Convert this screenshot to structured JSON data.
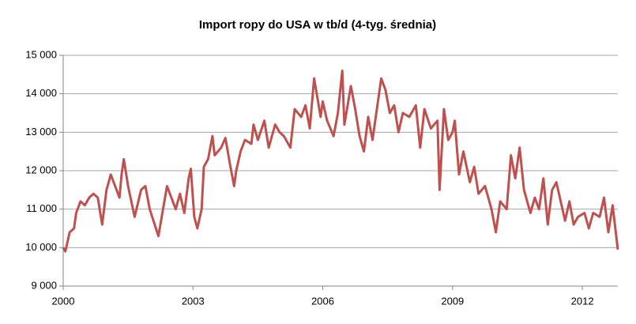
{
  "chart_data": {
    "type": "line",
    "title": "Import ropy do USA w tb/d (4-tyg. średnia)",
    "xlim": [
      2000,
      2012.82
    ],
    "xticks": [
      2000,
      2003,
      2006,
      2009,
      2012
    ],
    "ylim": [
      9000,
      15000
    ],
    "yticks": [
      {
        "value": 9000,
        "label": "9 000"
      },
      {
        "value": 10000,
        "label": "10 000"
      },
      {
        "value": 11000,
        "label": "11 000"
      },
      {
        "value": 12000,
        "label": "12 000"
      },
      {
        "value": 13000,
        "label": "13 000"
      },
      {
        "value": 14000,
        "label": "14 000"
      },
      {
        "value": 15000,
        "label": "15 000"
      }
    ],
    "grid": true,
    "series": [
      {
        "color": "#c0504d",
        "x": [
          2000.0,
          2000.05,
          2000.15,
          2000.25,
          2000.3,
          2000.4,
          2000.5,
          2000.6,
          2000.7,
          2000.8,
          2000.9,
          2001.0,
          2001.1,
          2001.3,
          2001.35,
          2001.4,
          2001.5,
          2001.65,
          2001.8,
          2001.9,
          2002.0,
          2002.2,
          2002.4,
          2002.5,
          2002.6,
          2002.7,
          2002.8,
          2002.9,
          2002.95,
          2003.03,
          2003.1,
          2003.2,
          2003.25,
          2003.35,
          2003.45,
          2003.5,
          2003.65,
          2003.75,
          2003.85,
          2003.95,
          2004.0,
          2004.1,
          2004.2,
          2004.35,
          2004.4,
          2004.5,
          2004.65,
          2004.75,
          2004.9,
          2005.0,
          2005.1,
          2005.25,
          2005.35,
          2005.5,
          2005.6,
          2005.7,
          2005.8,
          2005.95,
          2006.0,
          2006.1,
          2006.25,
          2006.35,
          2006.45,
          2006.5,
          2006.65,
          2006.75,
          2006.85,
          2006.95,
          2007.05,
          2007.15,
          2007.25,
          2007.35,
          2007.45,
          2007.55,
          2007.65,
          2007.75,
          2007.85,
          2008.0,
          2008.15,
          2008.25,
          2008.35,
          2008.5,
          2008.65,
          2008.7,
          2008.8,
          2008.9,
          2009.0,
          2009.05,
          2009.15,
          2009.25,
          2009.4,
          2009.5,
          2009.6,
          2009.75,
          2009.9,
          2010.0,
          2010.1,
          2010.25,
          2010.35,
          2010.45,
          2010.55,
          2010.65,
          2010.8,
          2010.9,
          2011.0,
          2011.1,
          2011.2,
          2011.3,
          2011.4,
          2011.5,
          2011.6,
          2011.7,
          2011.8,
          2011.9,
          2012.05,
          2012.15,
          2012.25,
          2012.4,
          2012.5,
          2012.6,
          2012.7,
          2012.82
        ],
        "values": [
          10000,
          9900,
          10400,
          10500,
          10900,
          11200,
          11100,
          11300,
          11400,
          11300,
          10600,
          11500,
          11900,
          11300,
          11900,
          12300,
          11600,
          10800,
          11500,
          11600,
          11000,
          10300,
          11600,
          11300,
          11000,
          11400,
          10900,
          11800,
          12050,
          10800,
          10500,
          11000,
          12100,
          12300,
          12900,
          12400,
          12600,
          12850,
          12200,
          11600,
          12000,
          12500,
          12800,
          12700,
          13200,
          12800,
          13300,
          12600,
          13200,
          13000,
          12900,
          12600,
          13600,
          13400,
          13700,
          13100,
          14400,
          13400,
          13800,
          13300,
          12900,
          13500,
          14600,
          13200,
          14200,
          13600,
          12900,
          12500,
          13400,
          12800,
          13600,
          14400,
          14100,
          13500,
          13700,
          13000,
          13500,
          13400,
          13700,
          12600,
          13600,
          13100,
          13300,
          11500,
          13600,
          12800,
          13000,
          13300,
          11900,
          12500,
          11700,
          12100,
          11400,
          11600,
          11000,
          10400,
          11200,
          11000,
          12400,
          11800,
          12600,
          11500,
          10900,
          11300,
          11000,
          11800,
          10600,
          11500,
          11700,
          11200,
          10700,
          11200,
          10600,
          10800,
          10900,
          10500,
          10900,
          10800,
          11300,
          10400,
          11100,
          9950
        ]
      }
    ]
  }
}
